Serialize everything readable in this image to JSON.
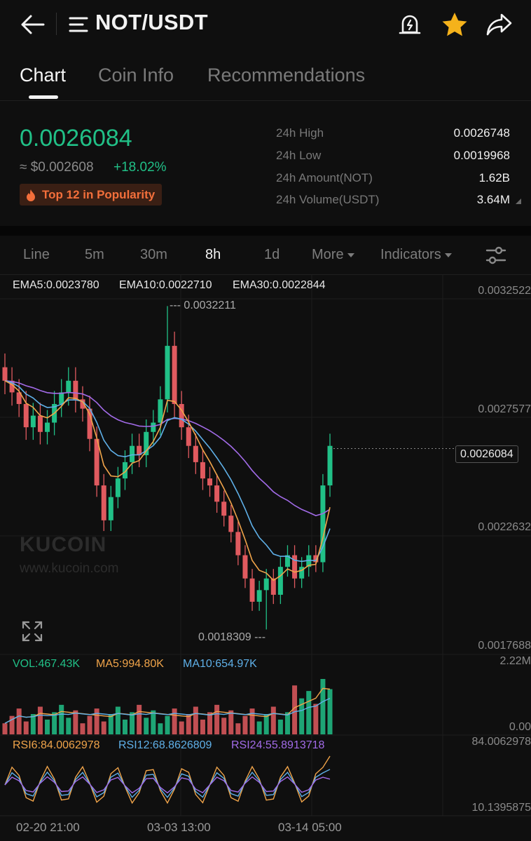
{
  "header": {
    "pair": "NOT/USDT"
  },
  "tabs": [
    {
      "label": "Chart",
      "active": true
    },
    {
      "label": "Coin Info",
      "active": false
    },
    {
      "label": "Recommendations",
      "active": false
    }
  ],
  "ticker": {
    "last_price": "0.0026084",
    "usd_price": "≈ $0.002608",
    "change": "+18.02%",
    "popularity": "Top 12 in Popularity",
    "stats": [
      {
        "label": "24h High",
        "value": "0.0026748"
      },
      {
        "label": "24h Low",
        "value": "0.0019968"
      },
      {
        "label": "24h Amount(NOT)",
        "value": "1.62B"
      },
      {
        "label": "24h Volume(USDT)",
        "value": "3.64M"
      }
    ]
  },
  "toolbar": {
    "items": [
      {
        "label": "Line",
        "active": false
      },
      {
        "label": "5m",
        "active": false
      },
      {
        "label": "30m",
        "active": false
      },
      {
        "label": "8h",
        "active": true
      },
      {
        "label": "1d",
        "active": false
      }
    ],
    "more": "More",
    "indicators": "Indicators"
  },
  "chart_labels": {
    "ema5": "EMA5:0.0023780",
    "ema10": "EMA10:0.0022710",
    "ema30": "EMA30:0.0022844",
    "price_axis": [
      "0.0032522",
      "0.0027577",
      "0.0022632",
      "0.0017688"
    ],
    "high_annot": "--- 0.0032211",
    "low_annot": "0.0018309 ---",
    "current_price": "0.0026084",
    "watermark": "KUCOIN",
    "watermark_url": "www.kucoin.com",
    "vol": "VOL:467.43K",
    "ma5": "MA5:994.80K",
    "ma10": "MA10:654.97K",
    "vol_max": "2.22M",
    "vol_min": "0.00",
    "rsi6": "RSI6:84.0062978",
    "rsi12": "RSI12:68.8626809",
    "rsi24": "RSI24:55.8913718",
    "rsi_max": "84.0062978",
    "rsi_min": "10.1395875",
    "dates": [
      "02-20 21:00",
      "03-03 13:00",
      "03-14 05:00"
    ]
  },
  "colors": {
    "up": "#21c087",
    "down": "#e05a5f",
    "ema5": "#f0a44a",
    "ema10": "#5fb0e8",
    "ema30": "#a26be8",
    "star": "#f5b21b",
    "fire": "#f36f3b"
  },
  "chart_data": {
    "type": "candlestick",
    "timeframe": "8h",
    "price_axis_ticks": [
      0.0032522,
      0.0027577,
      0.0022632,
      0.0017688
    ],
    "visible_high": 0.0032211,
    "visible_low": 0.0018309,
    "last": 0.0026084,
    "close_series": [
      0.0029,
      0.00285,
      0.0028,
      0.0027,
      0.00275,
      0.00268,
      0.00272,
      0.0028,
      0.00285,
      0.0029,
      0.00282,
      0.00278,
      0.00265,
      0.00245,
      0.0023,
      0.0024,
      0.00248,
      0.00255,
      0.00262,
      0.00258,
      0.00268,
      0.00272,
      0.00282,
      0.00305,
      0.0028,
      0.0027,
      0.00262,
      0.00255,
      0.00248,
      0.00245,
      0.00238,
      0.00232,
      0.00225,
      0.00215,
      0.00205,
      0.00195,
      0.002,
      0.00205,
      0.00198,
      0.0021,
      0.00215,
      0.00205,
      0.0021,
      0.00215,
      0.00212,
      0.00245,
      0.00262
    ],
    "ema5_last": 0.002378,
    "ema10_last": 0.002271,
    "ema30_last": 0.0022844,
    "volume": {
      "last": "467.43K",
      "ma5": "994.80K",
      "ma10": "654.97K",
      "max": "2.22M",
      "min": "0.00"
    },
    "rsi": {
      "rsi6": 84.0062978,
      "rsi12": 68.8626809,
      "rsi24": 55.8913718,
      "max": 84.0062978,
      "min": 10.1395875
    }
  }
}
